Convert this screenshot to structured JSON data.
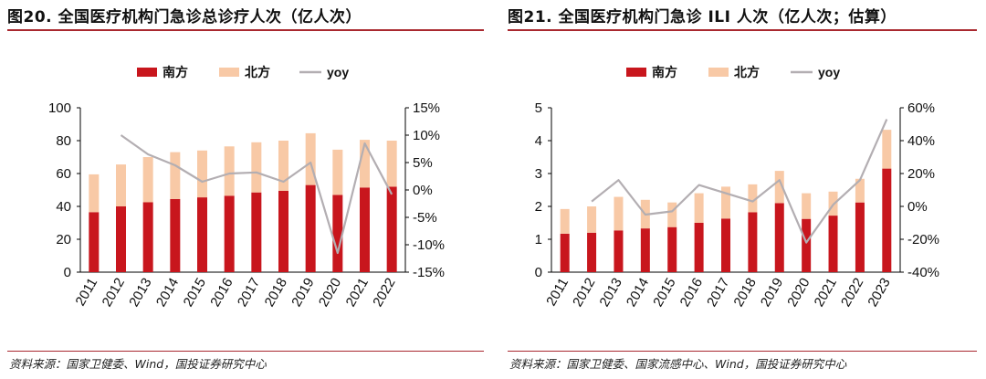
{
  "charts": [
    {
      "title": "图20. 全国医疗机构门急诊总诊疗人次（亿人次）",
      "source": "资料来源：国家卫健委、Wind，国投证券研究中心"
    },
    {
      "title": "图21. 全国医疗机构门急诊 ILI 人次（亿人次；估算）",
      "source": "资料来源：国家卫健委、国家流感中心、Wind，国投证券研究中心"
    }
  ],
  "colors": {
    "south": "#c8161d",
    "north": "#f8c9a6",
    "yoy": "#b3aeb2",
    "rule": "#a9282f"
  },
  "chart_data": [
    {
      "type": "bar",
      "stacked": true,
      "categories": [
        "2011",
        "2012",
        "2013",
        "2014",
        "2015",
        "2016",
        "2017",
        "2018",
        "2019",
        "2020",
        "2021",
        "2022"
      ],
      "series": [
        {
          "name": "南方",
          "values": [
            36.5,
            40.0,
            42.5,
            44.5,
            45.5,
            46.5,
            48.5,
            49.5,
            53.0,
            47.0,
            51.5,
            52.0
          ]
        },
        {
          "name": "北方",
          "values": [
            23.0,
            25.5,
            27.5,
            28.5,
            28.5,
            30.0,
            30.5,
            30.5,
            31.5,
            27.5,
            29.0,
            28.0
          ]
        }
      ],
      "line_series": {
        "name": "yoy",
        "axis": "right",
        "values": [
          null,
          10.0,
          6.5,
          4.5,
          1.5,
          3.0,
          3.2,
          1.5,
          5.0,
          -11.5,
          8.5,
          -0.8
        ]
      },
      "ylim": [
        0,
        100
      ],
      "yticks": [
        0,
        20,
        40,
        60,
        80,
        100
      ],
      "y2lim": [
        -15,
        15
      ],
      "y2ticks": [
        -15,
        -10,
        -5,
        0,
        5,
        10,
        15
      ],
      "y2tick_labels": [
        "-15%",
        "-10%",
        "-5%",
        "0%",
        "5%",
        "10%",
        "15%"
      ],
      "legend": [
        "南方",
        "北方",
        "yoy"
      ],
      "legend_position": "top-center",
      "xlabel": "",
      "ylabel": ""
    },
    {
      "type": "bar",
      "stacked": true,
      "categories": [
        "2011",
        "2012",
        "2013",
        "2014",
        "2015",
        "2016",
        "2017",
        "2018",
        "2019",
        "2020",
        "2021",
        "2022",
        "2023"
      ],
      "series": [
        {
          "name": "南方",
          "values": [
            1.17,
            1.2,
            1.27,
            1.33,
            1.37,
            1.5,
            1.63,
            1.82,
            2.1,
            1.62,
            1.72,
            2.12,
            3.15
          ]
        },
        {
          "name": "北方",
          "values": [
            0.75,
            0.8,
            1.02,
            0.87,
            0.75,
            0.9,
            0.97,
            0.85,
            0.98,
            0.78,
            0.73,
            0.72,
            1.18
          ]
        }
      ],
      "line_series": {
        "name": "yoy",
        "axis": "right",
        "values": [
          null,
          3,
          16,
          -5,
          -3,
          13,
          8,
          3,
          16,
          -22,
          1,
          16,
          53
        ]
      },
      "ylim": [
        0,
        5
      ],
      "yticks": [
        0,
        1,
        2,
        3,
        4,
        5
      ],
      "y2lim": [
        -40,
        60
      ],
      "y2ticks": [
        -40,
        -20,
        0,
        20,
        40,
        60
      ],
      "y2tick_labels": [
        "-40%",
        "-20%",
        "0%",
        "20%",
        "40%",
        "60%"
      ],
      "legend": [
        "南方",
        "北方",
        "yoy"
      ],
      "legend_position": "top-center",
      "xlabel": "",
      "ylabel": ""
    }
  ]
}
